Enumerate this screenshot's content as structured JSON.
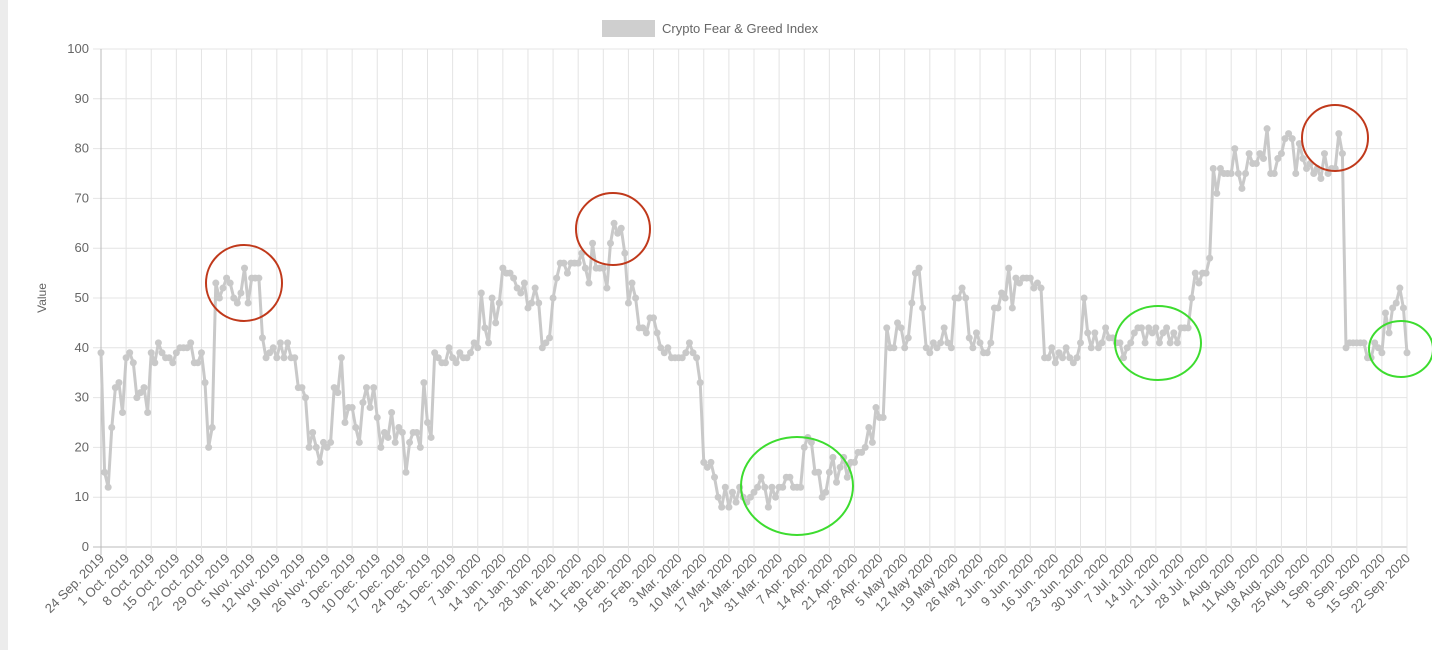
{
  "chart_data": {
    "type": "line",
    "legend": {
      "label": "Crypto Fear & Greed Index",
      "position": "top"
    },
    "ylabel": "Value",
    "xlabel": "",
    "ylim": [
      0,
      100
    ],
    "yticks": [
      0,
      10,
      20,
      30,
      40,
      50,
      60,
      70,
      80,
      90,
      100
    ],
    "grid": true,
    "series_color": "#c9c9c9",
    "x_start": "24 Sep. 2019",
    "x_end": "22 Sep. 2020",
    "x_step": "daily",
    "xtick_labels": [
      "24 Sep. 2019",
      "1 Oct. 2019",
      "8 Oct. 2019",
      "15 Oct. 2019",
      "22 Oct. 2019",
      "29 Oct. 2019",
      "5 Nov. 2019",
      "12 Nov. 2019",
      "19 Nov. 2019",
      "26 Nov. 2019",
      "3 Dec. 2019",
      "10 Dec. 2019",
      "17 Dec. 2019",
      "24 Dec. 2019",
      "31 Dec. 2019",
      "7 Jan. 2020",
      "14 Jan. 2020",
      "21 Jan. 2020",
      "28 Jan. 2020",
      "4 Feb. 2020",
      "11 Feb. 2020",
      "18 Feb. 2020",
      "25 Feb. 2020",
      "3 Mar. 2020",
      "10 Mar. 2020",
      "17 Mar. 2020",
      "24 Mar. 2020",
      "31 Mar. 2020",
      "7 Apr. 2020",
      "14 Apr. 2020",
      "21 Apr. 2020",
      "28 Apr. 2020",
      "5 May 2020",
      "12 May 2020",
      "19 May 2020",
      "26 May 2020",
      "2 Jun. 2020",
      "9 Jun. 2020",
      "16 Jun. 2020",
      "23 Jun. 2020",
      "30 Jun. 2020",
      "7 Jul. 2020",
      "14 Jul. 2020",
      "21 Jul. 2020",
      "28 Jul. 2020",
      "4 Aug. 2020",
      "11 Aug. 2020",
      "18 Aug. 2020",
      "25 Aug. 2020",
      "1 Sep. 2020",
      "8 Sep. 2020",
      "15 Sep. 2020",
      "22 Sep. 2020"
    ],
    "values": [
      39,
      15,
      12,
      24,
      32,
      33,
      27,
      38,
      39,
      37,
      30,
      31,
      32,
      27,
      39,
      37,
      41,
      39,
      38,
      38,
      37,
      39,
      40,
      40,
      40,
      41,
      37,
      37,
      39,
      33,
      20,
      24,
      53,
      50,
      52,
      54,
      53,
      50,
      49,
      51,
      56,
      49,
      54,
      54,
      54,
      42,
      38,
      39,
      40,
      38,
      41,
      38,
      41,
      38,
      38,
      32,
      32,
      30,
      20,
      23,
      20,
      17,
      21,
      20,
      21,
      32,
      31,
      38,
      25,
      28,
      28,
      24,
      21,
      29,
      32,
      28,
      32,
      26,
      20,
      23,
      22,
      27,
      21,
      24,
      23,
      15,
      21,
      23,
      23,
      20,
      33,
      25,
      22,
      39,
      38,
      37,
      37,
      40,
      38,
      37,
      39,
      38,
      38,
      39,
      41,
      40,
      51,
      44,
      41,
      50,
      45,
      49,
      56,
      55,
      55,
      54,
      52,
      51,
      53,
      48,
      49,
      52,
      49,
      40,
      41,
      42,
      50,
      54,
      57,
      57,
      55,
      57,
      57,
      57,
      59,
      56,
      53,
      61,
      56,
      56,
      56,
      52,
      61,
      65,
      63,
      64,
      59,
      49,
      53,
      50,
      44,
      44,
      43,
      46,
      46,
      43,
      40,
      39,
      40,
      38,
      38,
      38,
      38,
      39,
      41,
      39,
      38,
      33,
      17,
      16,
      17,
      14,
      10,
      8,
      12,
      8,
      11,
      9,
      12,
      10,
      9,
      10,
      11,
      12,
      14,
      12,
      8,
      12,
      10,
      12,
      12,
      14,
      14,
      12,
      12,
      12,
      20,
      22,
      21,
      15,
      15,
      10,
      11,
      15,
      18,
      13,
      16,
      18,
      14,
      17,
      17,
      19,
      19,
      20,
      24,
      21,
      28,
      26,
      26,
      44,
      40,
      40,
      45,
      44,
      40,
      42,
      49,
      55,
      56,
      48,
      40,
      39,
      41,
      40,
      41,
      44,
      41,
      40,
      50,
      50,
      52,
      50,
      42,
      40,
      43,
      41,
      39,
      39,
      41,
      48,
      48,
      51,
      50,
      56,
      48,
      54,
      53,
      54,
      54,
      54,
      52,
      53,
      52,
      38,
      38,
      40,
      37,
      39,
      38,
      40,
      38,
      37,
      38,
      41,
      50,
      43,
      40,
      43,
      40,
      41,
      44,
      42,
      42,
      41,
      41,
      38,
      40,
      41,
      43,
      44,
      44,
      41,
      44,
      43,
      44,
      41,
      43,
      44,
      41,
      43,
      41,
      44,
      44,
      44,
      50,
      55,
      53,
      55,
      55,
      58,
      76,
      71,
      76,
      75,
      75,
      75,
      80,
      75,
      72,
      75,
      79,
      77,
      77,
      79,
      78,
      84,
      75,
      75,
      78,
      79,
      82,
      83,
      82,
      75,
      81,
      78,
      76,
      77,
      75,
      76,
      74,
      79,
      75,
      76,
      76,
      83,
      79,
      40,
      41,
      41,
      41,
      41,
      41,
      38,
      38,
      41,
      40,
      39,
      47,
      43,
      48,
      49,
      52,
      48,
      39
    ],
    "annotations": [
      {
        "shape": "circle",
        "color": "#c0391b",
        "near": "29 Oct.–5 Nov. 2019 peak"
      },
      {
        "shape": "circle",
        "color": "#c0391b",
        "near": "mid Feb. 2020 peak"
      },
      {
        "shape": "circle",
        "color": "#3ddc2f",
        "near": "late Mar.–early Apr. 2020 low"
      },
      {
        "shape": "circle",
        "color": "#3ddc2f",
        "near": "mid Jul. 2020"
      },
      {
        "shape": "circle",
        "color": "#c0391b",
        "near": "1 Sep. 2020 peak"
      },
      {
        "shape": "circle",
        "color": "#3ddc2f",
        "near": "22 Sep. 2020"
      }
    ]
  }
}
